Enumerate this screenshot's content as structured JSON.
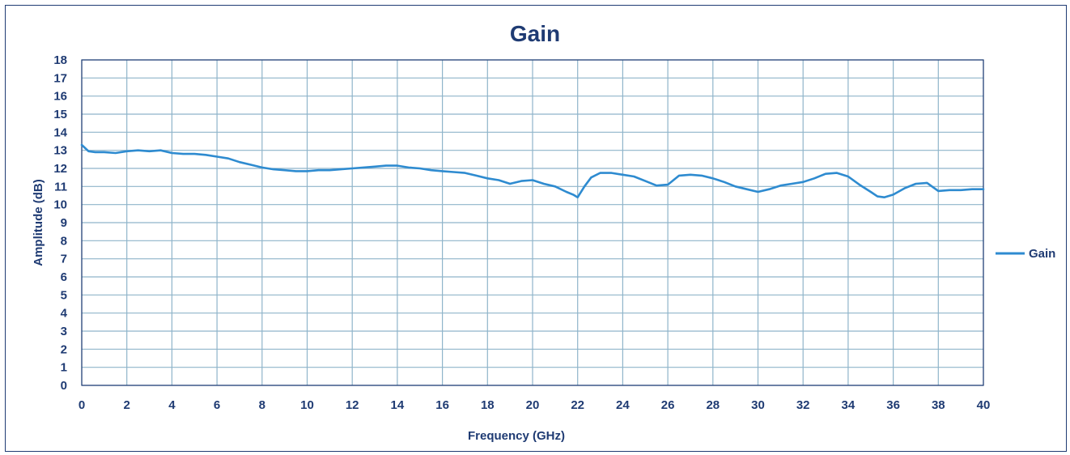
{
  "chart_data": {
    "type": "line",
    "title": "Gain",
    "xlabel": "Frequency (GHz)",
    "ylabel": "Amplitude (dB)",
    "xlim": [
      0,
      40
    ],
    "ylim": [
      0,
      18
    ],
    "x_ticks": [
      0,
      2,
      4,
      6,
      8,
      10,
      12,
      14,
      16,
      18,
      20,
      22,
      24,
      26,
      28,
      30,
      32,
      34,
      36,
      38,
      40
    ],
    "y_ticks": [
      0,
      1,
      2,
      3,
      4,
      5,
      6,
      7,
      8,
      9,
      10,
      11,
      12,
      13,
      14,
      15,
      16,
      17,
      18
    ],
    "grid": true,
    "legend_position": "right",
    "colors": {
      "line": "#2e8bd0",
      "grid": "#8fb4ca",
      "axis": "#1f3b73",
      "text": "#1f3b73"
    },
    "series": [
      {
        "name": "Gain",
        "x": [
          0,
          0.3,
          0.6,
          1.0,
          1.5,
          2.0,
          2.5,
          3.0,
          3.5,
          4.0,
          4.5,
          5.0,
          5.5,
          6.0,
          6.5,
          7.0,
          7.5,
          8.0,
          8.5,
          9.0,
          9.5,
          10.0,
          10.5,
          11.0,
          11.5,
          12.0,
          12.5,
          13.0,
          13.5,
          14.0,
          14.5,
          15.0,
          15.5,
          16.0,
          16.5,
          17.0,
          17.5,
          18.0,
          18.5,
          19.0,
          19.5,
          20.0,
          20.5,
          21.0,
          21.5,
          21.8,
          22.0,
          22.3,
          22.6,
          23.0,
          23.5,
          24.0,
          24.5,
          25.0,
          25.5,
          26.0,
          26.5,
          27.0,
          27.5,
          28.0,
          28.5,
          29.0,
          29.5,
          30.0,
          30.5,
          31.0,
          31.5,
          32.0,
          32.5,
          33.0,
          33.5,
          34.0,
          34.5,
          35.0,
          35.3,
          35.6,
          36.0,
          36.5,
          37.0,
          37.5,
          38.0,
          38.5,
          39.0,
          39.5,
          40.0
        ],
        "values": [
          13.3,
          12.95,
          12.9,
          12.9,
          12.85,
          12.95,
          13.0,
          12.95,
          13.0,
          12.85,
          12.8,
          12.8,
          12.75,
          12.65,
          12.55,
          12.35,
          12.2,
          12.05,
          11.95,
          11.9,
          11.85,
          11.85,
          11.9,
          11.9,
          11.95,
          12.0,
          12.05,
          12.1,
          12.15,
          12.15,
          12.05,
          12.0,
          11.9,
          11.85,
          11.8,
          11.75,
          11.6,
          11.45,
          11.35,
          11.15,
          11.3,
          11.35,
          11.15,
          11.0,
          10.7,
          10.55,
          10.4,
          11.0,
          11.5,
          11.75,
          11.75,
          11.65,
          11.55,
          11.3,
          11.05,
          11.1,
          11.6,
          11.65,
          11.6,
          11.45,
          11.25,
          11.0,
          10.85,
          10.7,
          10.85,
          11.05,
          11.15,
          11.25,
          11.45,
          11.7,
          11.75,
          11.55,
          11.1,
          10.7,
          10.45,
          10.4,
          10.55,
          10.9,
          11.15,
          11.2,
          10.75,
          10.8,
          10.8,
          10.85,
          10.85
        ]
      }
    ]
  }
}
